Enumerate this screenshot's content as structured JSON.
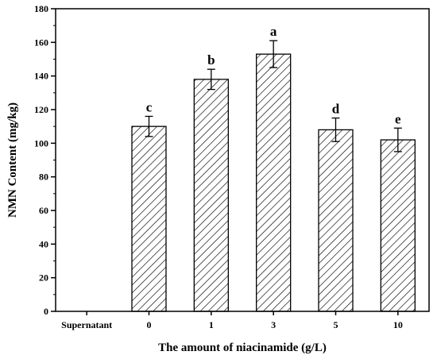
{
  "chart_data": {
    "type": "bar",
    "categories": [
      "Supernatant",
      "0",
      "1",
      "3",
      "5",
      "10"
    ],
    "values": [
      0,
      110,
      138,
      153,
      108,
      102
    ],
    "errors": [
      0,
      6,
      6,
      8,
      7,
      7
    ],
    "significance_labels": [
      "",
      "c",
      "b",
      "a",
      "d",
      "e"
    ],
    "xlabel": "The amount of niacinamide (g/L)",
    "ylabel": "NMN Content (mg/kg)",
    "ylim": [
      0,
      180
    ],
    "yticks": [
      0,
      20,
      40,
      60,
      80,
      100,
      120,
      140,
      160,
      180
    ],
    "bar_fill": "hatched",
    "grid": false,
    "colors": {
      "bar_stroke": "#000000",
      "hatch": "#000000",
      "background": "#ffffff"
    }
  }
}
